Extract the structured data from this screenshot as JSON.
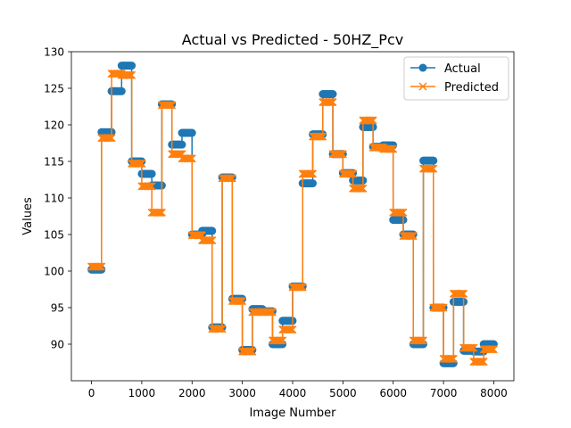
{
  "chart_data": {
    "type": "line",
    "title": "Actual vs Predicted - 50HZ_Pcv",
    "xlabel": "Image Number",
    "ylabel": "Values",
    "xlim": [
      -400,
      8400
    ],
    "ylim": [
      85,
      130
    ],
    "xticks": [
      0,
      1000,
      2000,
      3000,
      4000,
      5000,
      6000,
      7000,
      8000
    ],
    "yticks": [
      90,
      95,
      100,
      105,
      110,
      115,
      120,
      125,
      130
    ],
    "grid": false,
    "legend_position": "top-right",
    "segment_starts": [
      0,
      200,
      400,
      600,
      800,
      1000,
      1200,
      1400,
      1600,
      1800,
      2000,
      2200,
      2400,
      2600,
      2800,
      3000,
      3200,
      3400,
      3600,
      3800,
      4000,
      4200,
      4400,
      4600,
      4800,
      5000,
      5200,
      5400,
      5600,
      5800,
      6000,
      6200,
      6400,
      6600,
      6800,
      7000,
      7200,
      7400,
      7600,
      7800
    ],
    "segment_length": 200,
    "series": [
      {
        "name": "Actual",
        "color": "#1f77b4",
        "marker": "circle",
        "values": [
          100.2,
          119.0,
          124.6,
          128.1,
          115.0,
          113.3,
          111.7,
          122.8,
          117.3,
          118.9,
          105.0,
          105.5,
          92.3,
          112.8,
          96.2,
          89.2,
          94.8,
          94.5,
          90.0,
          93.2,
          97.9,
          112.0,
          118.7,
          124.2,
          116.0,
          113.4,
          112.4,
          119.7,
          117.0,
          117.2,
          107.0,
          105.0,
          90.0,
          115.1,
          95.0,
          87.4,
          95.8,
          89.1,
          89.0,
          90.0
        ]
      },
      {
        "name": "Predicted",
        "color": "#ff7f0e",
        "marker": "x",
        "values": [
          100.6,
          118.2,
          127.0,
          126.8,
          114.7,
          111.6,
          108.0,
          122.7,
          116.0,
          115.4,
          104.9,
          104.2,
          92.1,
          112.7,
          95.9,
          89.0,
          94.4,
          94.4,
          90.5,
          92.0,
          97.8,
          113.3,
          118.4,
          123.1,
          116.0,
          113.3,
          111.3,
          120.6,
          116.9,
          116.7,
          108.0,
          104.8,
          90.5,
          114.0,
          95.0,
          88.0,
          96.9,
          89.5,
          87.6,
          89.3
        ]
      }
    ]
  }
}
